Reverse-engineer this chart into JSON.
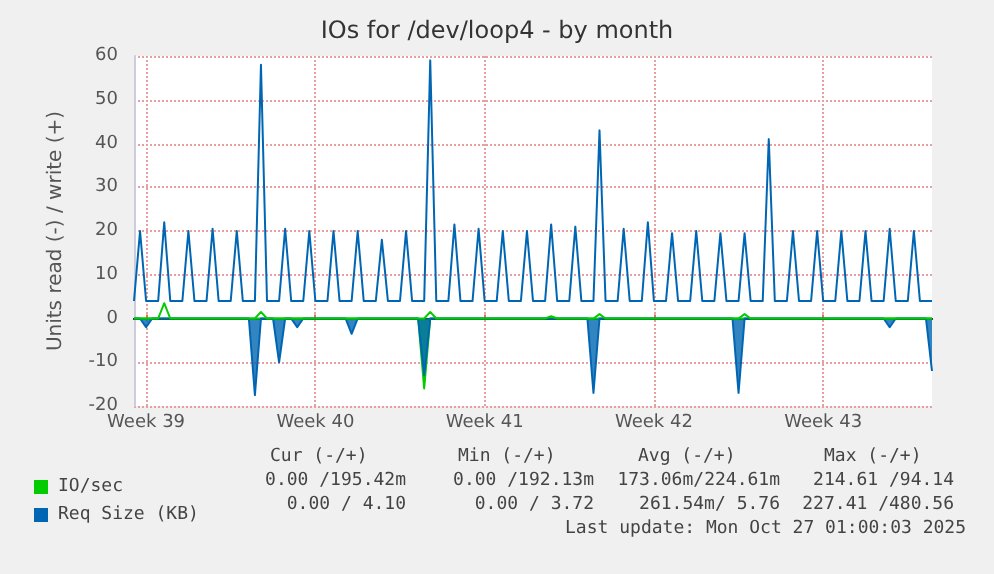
{
  "chart_data": {
    "type": "line",
    "title": "IOs for /dev/loop4 - by month",
    "ylabel": "Units read (-) / write (+)",
    "categories": [
      null,
      null,
      "Week 39",
      null,
      null,
      null,
      null,
      null,
      null,
      null,
      null,
      null,
      null,
      null,
      null,
      null,
      null,
      null,
      null,
      null,
      null,
      null,
      null,
      null,
      null,
      null,
      null,
      null,
      null,
      null,
      "Week 40",
      null,
      null,
      null,
      null,
      null,
      null,
      null,
      null,
      null,
      null,
      null,
      null,
      null,
      null,
      null,
      null,
      null,
      null,
      null,
      null,
      null,
      null,
      null,
      null,
      null,
      null,
      null,
      "Week 41",
      null,
      null,
      null,
      null,
      null,
      null,
      null,
      null,
      null,
      null,
      null,
      null,
      null,
      null,
      null,
      null,
      null,
      null,
      null,
      null,
      null,
      null,
      null,
      null,
      null,
      null,
      null,
      "Week 42",
      null,
      null,
      null,
      null,
      null,
      null,
      null,
      null,
      null,
      null,
      null,
      null,
      null,
      null,
      null,
      null,
      null,
      null,
      null,
      null,
      null,
      null,
      null,
      null,
      null,
      null,
      null,
      "Week 43",
      null,
      null,
      null,
      null,
      null,
      null,
      null,
      null,
      null,
      null,
      null,
      null,
      null,
      null,
      null,
      null,
      null,
      null
    ],
    "ylim": [
      -20,
      60
    ],
    "yticks": [
      -20,
      -10,
      0,
      10,
      20,
      30,
      40,
      50,
      60
    ],
    "grid": true,
    "legend": "bottom left",
    "marker": "none",
    "line_style": "solid",
    "series": [
      {
        "type": "area",
        "color": "#00cc00",
        "values": [
          0,
          0,
          0,
          0,
          0,
          0,
          0,
          0,
          0,
          0,
          0,
          0,
          0,
          0,
          0,
          0,
          0,
          0,
          0,
          0,
          0,
          0,
          0,
          0,
          0,
          0,
          0,
          0,
          0,
          0,
          0,
          0,
          0,
          0,
          0,
          0,
          0,
          0,
          0,
          0,
          0,
          0,
          0,
          0,
          0,
          0,
          0,
          0,
          -16,
          0,
          0,
          0,
          0,
          0,
          0,
          0,
          0,
          0,
          0,
          0,
          0,
          0,
          0,
          0,
          0,
          0,
          0,
          0,
          0,
          0,
          0,
          0,
          0,
          0,
          0,
          0,
          0,
          0,
          0,
          0,
          0,
          0,
          0,
          0,
          0,
          0,
          0,
          0,
          0,
          0,
          0,
          0,
          0,
          0,
          0,
          0,
          0,
          0,
          0,
          0,
          0,
          0,
          0,
          0,
          0,
          0,
          0,
          0,
          0,
          0,
          0,
          0,
          0,
          0,
          0,
          0,
          0,
          0,
          0,
          0,
          0,
          0,
          0,
          0,
          0,
          0,
          0,
          0,
          0,
          0,
          0,
          0,
          0
        ]
      },
      {
        "type": "area",
        "color": "#0066b3",
        "values": [
          0,
          0,
          -2,
          0,
          0,
          0,
          0,
          0,
          0,
          0,
          0,
          0,
          0,
          0,
          0,
          0,
          0,
          0,
          0,
          0,
          -17.5,
          0,
          0,
          0,
          -10,
          0,
          0,
          -2,
          0,
          0,
          0,
          0,
          0,
          0,
          0,
          0,
          -3.5,
          0,
          0,
          0,
          0,
          0,
          0,
          0,
          0,
          0,
          0,
          0,
          -13,
          0,
          0,
          0,
          0,
          0,
          0,
          0,
          0,
          0,
          0,
          0,
          0,
          0,
          0,
          0,
          0,
          0,
          0,
          0,
          0,
          0,
          0,
          0,
          0,
          0,
          0,
          0,
          -17,
          0,
          0,
          0,
          0,
          0,
          0,
          0,
          0,
          0,
          0,
          0,
          0,
          0,
          0,
          0,
          0,
          0,
          0,
          0,
          0,
          0,
          0,
          0,
          -17,
          0,
          0,
          0,
          0,
          0,
          0,
          0,
          0,
          0,
          0,
          0,
          0,
          0,
          0,
          0,
          0,
          0,
          0,
          0,
          0,
          0,
          0,
          0,
          0,
          -2,
          0,
          0,
          0,
          0,
          0,
          0,
          -12
        ]
      },
      {
        "name": "IO/sec",
        "color": "#00cc00",
        "values": [
          0,
          0,
          0,
          0,
          0,
          3.5,
          0,
          0,
          0,
          0,
          0,
          0,
          0,
          0,
          0,
          0,
          0,
          0,
          0,
          0,
          0,
          1.5,
          0,
          0,
          0,
          0,
          0,
          0,
          0,
          0,
          0,
          0,
          0,
          0,
          0,
          0,
          0,
          0,
          0,
          0,
          0,
          0,
          0,
          0,
          0,
          0,
          0,
          0,
          0,
          1.5,
          0,
          0,
          0,
          0,
          0,
          0,
          0,
          0,
          0,
          0,
          0,
          0,
          0,
          0,
          0,
          0,
          0,
          0,
          0,
          0.5,
          0,
          0,
          0,
          0,
          0,
          0,
          0,
          1,
          0,
          0,
          0,
          0,
          0,
          0,
          0,
          0,
          0,
          0,
          0,
          0,
          0,
          0,
          0,
          0,
          0,
          0,
          0,
          0,
          0,
          0,
          0,
          1,
          0,
          0,
          0,
          0,
          0,
          0,
          0,
          0,
          0,
          0,
          0,
          0,
          0,
          0,
          0,
          0,
          0,
          0,
          0,
          0,
          0,
          0,
          0,
          0,
          0,
          0,
          0,
          0,
          0,
          0,
          0
        ]
      },
      {
        "name": "Req Size (KB)",
        "color": "#0066b3",
        "values": [
          4,
          20,
          4,
          4,
          4,
          22,
          4,
          4,
          4,
          20,
          4,
          4,
          4,
          20.5,
          4,
          4,
          4,
          20,
          4,
          4,
          4,
          58,
          4,
          4,
          4,
          20.5,
          4,
          4,
          4,
          20,
          4,
          4,
          4,
          20,
          4,
          4,
          4,
          20,
          4,
          4,
          4,
          18,
          4,
          4,
          4,
          20,
          4,
          4,
          4,
          59,
          4,
          4,
          4,
          21.5,
          4,
          4,
          4,
          20.5,
          4,
          4,
          4,
          20,
          4,
          4,
          4,
          20,
          4,
          4,
          4,
          21.5,
          4,
          4,
          4,
          21,
          4,
          4,
          4,
          43,
          4,
          4,
          4,
          20.5,
          4,
          4,
          4,
          22,
          4,
          4,
          4,
          19.5,
          4,
          4,
          4,
          20,
          4,
          4,
          4,
          19.5,
          4,
          4,
          4,
          19.5,
          4,
          4,
          4,
          41,
          4,
          4,
          4,
          20,
          4,
          4,
          4,
          20,
          4,
          4,
          4,
          20,
          4,
          4,
          4,
          20,
          4,
          4,
          4,
          20.5,
          4,
          4,
          4,
          20,
          4,
          4,
          4
        ]
      }
    ],
    "annotations": [
      "Cur (-/+)",
      "Min (-/+)",
      "Avg (-/+)",
      "Max (-/+)",
      "0.00 /195.42m",
      "0.00 /192.13m",
      "173.06m/224.61m",
      "214.61 /94.14",
      "0.00 / 4.10",
      "0.00 / 3.72",
      "261.54m/ 5.76",
      "227.41 /480.56",
      "Last update: Mon Oct 27 01:00:03 2025"
    ]
  }
}
